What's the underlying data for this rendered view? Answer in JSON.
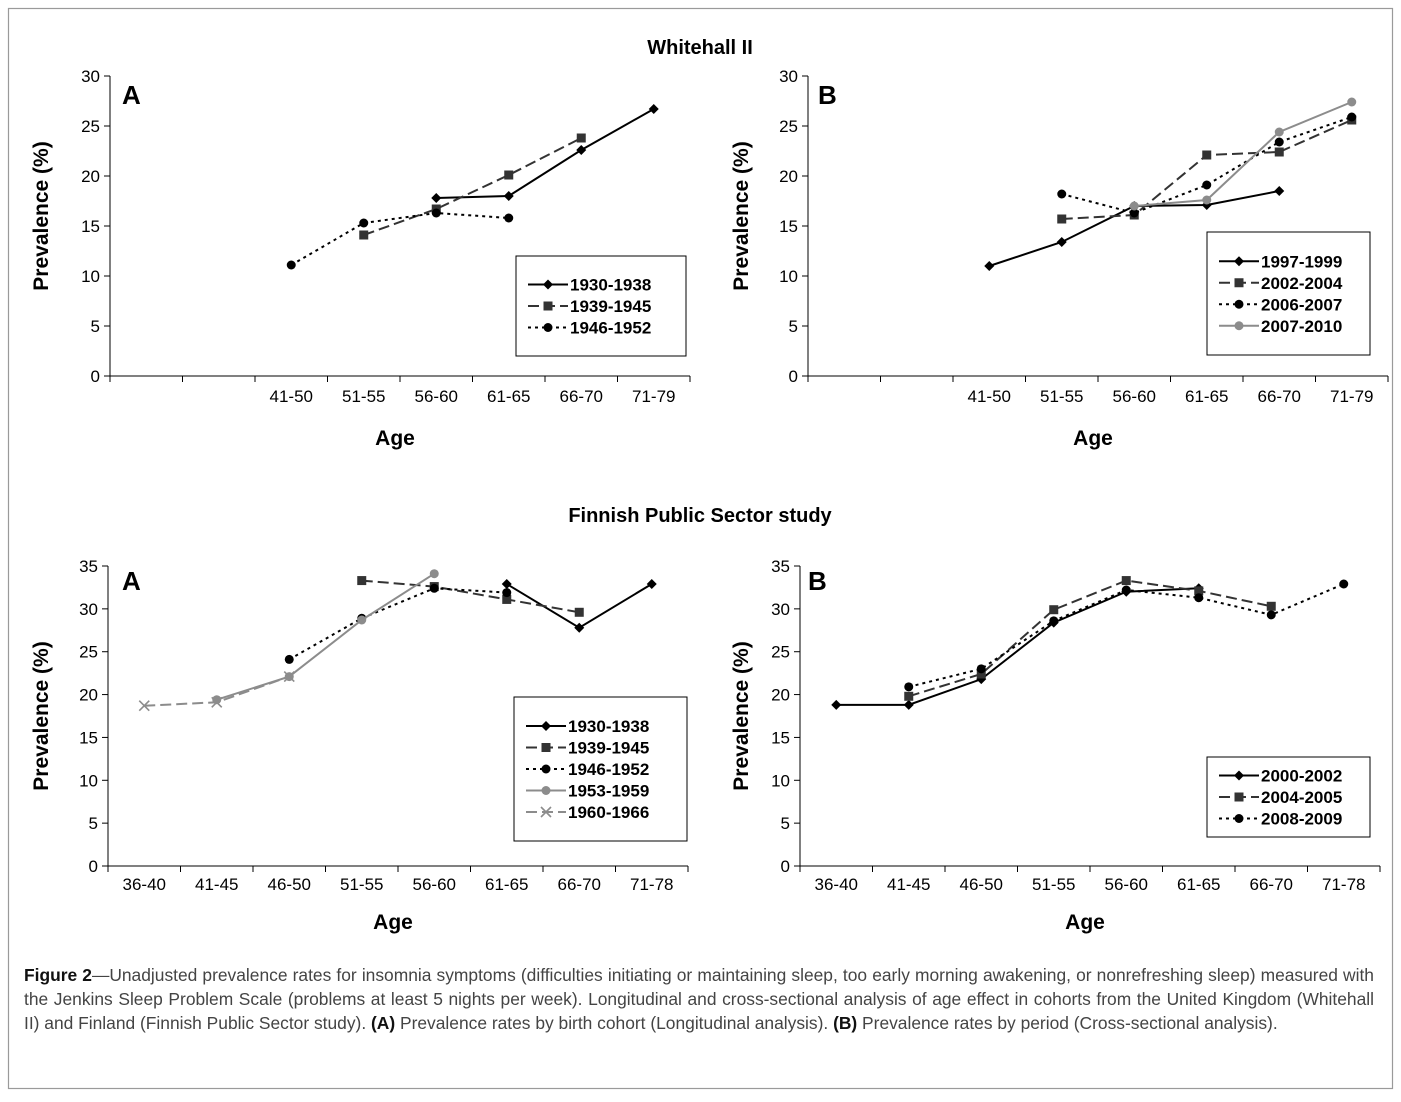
{
  "sections": [
    {
      "title": "Whitehall II"
    },
    {
      "title": "Finnish Public Sector study"
    }
  ],
  "chart_data": [
    {
      "type": "line",
      "section": "Whitehall II",
      "panel_label": "A",
      "xlabel": "Age",
      "ylabel": "Prevalence (%)",
      "ylim": [
        0,
        30
      ],
      "yticks": [
        0,
        5,
        10,
        15,
        20,
        25,
        30
      ],
      "grid": false,
      "legend_position": "bottom-right",
      "categories": [
        "",
        "",
        "41-50",
        "51-55",
        "56-60",
        "61-65",
        "66-70",
        "71-79"
      ],
      "series": [
        {
          "name": "1930-1938",
          "color": "#000000",
          "dash": "solid",
          "marker": "diamond",
          "values": [
            null,
            null,
            null,
            null,
            17.8,
            18.0,
            22.6,
            26.7
          ]
        },
        {
          "name": "1939-1945",
          "color": "#333333",
          "dash": "dash",
          "marker": "square",
          "values": [
            null,
            null,
            null,
            14.1,
            16.7,
            20.1,
            23.8,
            null
          ]
        },
        {
          "name": "1946-1952",
          "color": "#000000",
          "dash": "dot",
          "marker": "circle",
          "values": [
            null,
            null,
            11.1,
            15.3,
            16.3,
            15.8,
            null,
            null
          ]
        }
      ]
    },
    {
      "type": "line",
      "section": "Whitehall II",
      "panel_label": "B",
      "xlabel": "Age",
      "ylabel": "Prevalence (%)",
      "ylim": [
        0,
        30
      ],
      "yticks": [
        0,
        5,
        10,
        15,
        20,
        25,
        30
      ],
      "grid": false,
      "legend_position": "bottom-right",
      "categories": [
        "",
        "",
        "41-50",
        "51-55",
        "56-60",
        "61-65",
        "66-70",
        "71-79"
      ],
      "series": [
        {
          "name": "1997-1999",
          "color": "#000000",
          "dash": "solid",
          "marker": "diamond",
          "values": [
            null,
            null,
            11.0,
            13.4,
            17.0,
            17.1,
            18.5,
            null
          ]
        },
        {
          "name": "2002-2004",
          "color": "#333333",
          "dash": "dash",
          "marker": "square",
          "values": [
            null,
            null,
            null,
            15.7,
            16.1,
            22.1,
            22.4,
            25.6
          ]
        },
        {
          "name": "2006-2007",
          "color": "#000000",
          "dash": "dot",
          "marker": "circle",
          "values": [
            null,
            null,
            null,
            18.2,
            16.3,
            19.1,
            23.4,
            25.9
          ]
        },
        {
          "name": "2007-2010",
          "color": "#8c8c8c",
          "dash": "solid",
          "marker": "circle",
          "values": [
            null,
            null,
            null,
            null,
            17.0,
            17.6,
            24.4,
            27.4
          ]
        }
      ]
    },
    {
      "type": "line",
      "section": "Finnish Public Sector study",
      "panel_label": "A",
      "xlabel": "Age",
      "ylabel": "Prevalence (%)",
      "ylim": [
        0,
        35
      ],
      "yticks": [
        0,
        5,
        10,
        15,
        20,
        25,
        30,
        35
      ],
      "grid": false,
      "legend_position": "bottom-right",
      "categories": [
        "36-40",
        "41-45",
        "46-50",
        "51-55",
        "56-60",
        "61-65",
        "66-70",
        "71-78"
      ],
      "series": [
        {
          "name": "1930-1938",
          "color": "#000000",
          "dash": "solid",
          "marker": "diamond",
          "values": [
            null,
            null,
            null,
            null,
            null,
            32.9,
            27.8,
            32.9
          ]
        },
        {
          "name": "1939-1945",
          "color": "#333333",
          "dash": "dash",
          "marker": "square",
          "values": [
            null,
            null,
            null,
            33.3,
            32.6,
            31.1,
            29.6,
            null
          ]
        },
        {
          "name": "1946-1952",
          "color": "#000000",
          "dash": "dot",
          "marker": "circle",
          "values": [
            null,
            null,
            24.1,
            28.9,
            32.4,
            31.9,
            null,
            null
          ]
        },
        {
          "name": "1953-1959",
          "color": "#8c8c8c",
          "dash": "solid",
          "marker": "circle",
          "values": [
            null,
            19.4,
            22.1,
            28.7,
            34.1,
            null,
            null,
            null
          ]
        },
        {
          "name": "1960-1966",
          "color": "#8c8c8c",
          "dash": "dash",
          "marker": "x",
          "values": [
            18.7,
            19.1,
            22.1,
            null,
            null,
            null,
            null,
            null
          ]
        }
      ]
    },
    {
      "type": "line",
      "section": "Finnish Public Sector study",
      "panel_label": "B",
      "xlabel": "Age",
      "ylabel": "Prevalence (%)",
      "ylim": [
        0,
        35
      ],
      "yticks": [
        0,
        5,
        10,
        15,
        20,
        25,
        30,
        35
      ],
      "grid": false,
      "legend_position": "bottom-right",
      "categories": [
        "36-40",
        "41-45",
        "46-50",
        "51-55",
        "56-60",
        "61-65",
        "66-70",
        "71-78"
      ],
      "series": [
        {
          "name": "2000-2002",
          "color": "#000000",
          "dash": "solid",
          "marker": "diamond",
          "values": [
            18.8,
            18.8,
            21.8,
            28.4,
            32.0,
            32.4,
            null,
            null
          ]
        },
        {
          "name": "2004-2005",
          "color": "#333333",
          "dash": "dash",
          "marker": "square",
          "values": [
            null,
            19.8,
            22.4,
            29.9,
            33.3,
            32.1,
            30.3,
            null
          ]
        },
        {
          "name": "2008-2009",
          "color": "#000000",
          "dash": "dot",
          "marker": "circle",
          "values": [
            null,
            20.9,
            23.0,
            28.6,
            32.2,
            31.3,
            29.3,
            32.9
          ]
        }
      ]
    }
  ],
  "caption": {
    "label": "Figure 2",
    "text": "—Unadjusted prevalence rates for insomnia symptoms (difficulties initiating or maintaining sleep, too early morning awakening, or nonrefreshing sleep) measured with the Jenkins Sleep Problem Scale (problems at least 5 nights per week). Longitudinal and cross-sectional analysis of age effect in cohorts from the United Kingdom (Whitehall II) and Finland (Finnish Public Sector study). ",
    "a_label": "(A)",
    "a_text": " Prevalence rates by birth cohort (Longitudinal analysis). ",
    "b_label": "(B)",
    "b_text": " Prevalence rates by period (Cross-sectional analysis)."
  }
}
